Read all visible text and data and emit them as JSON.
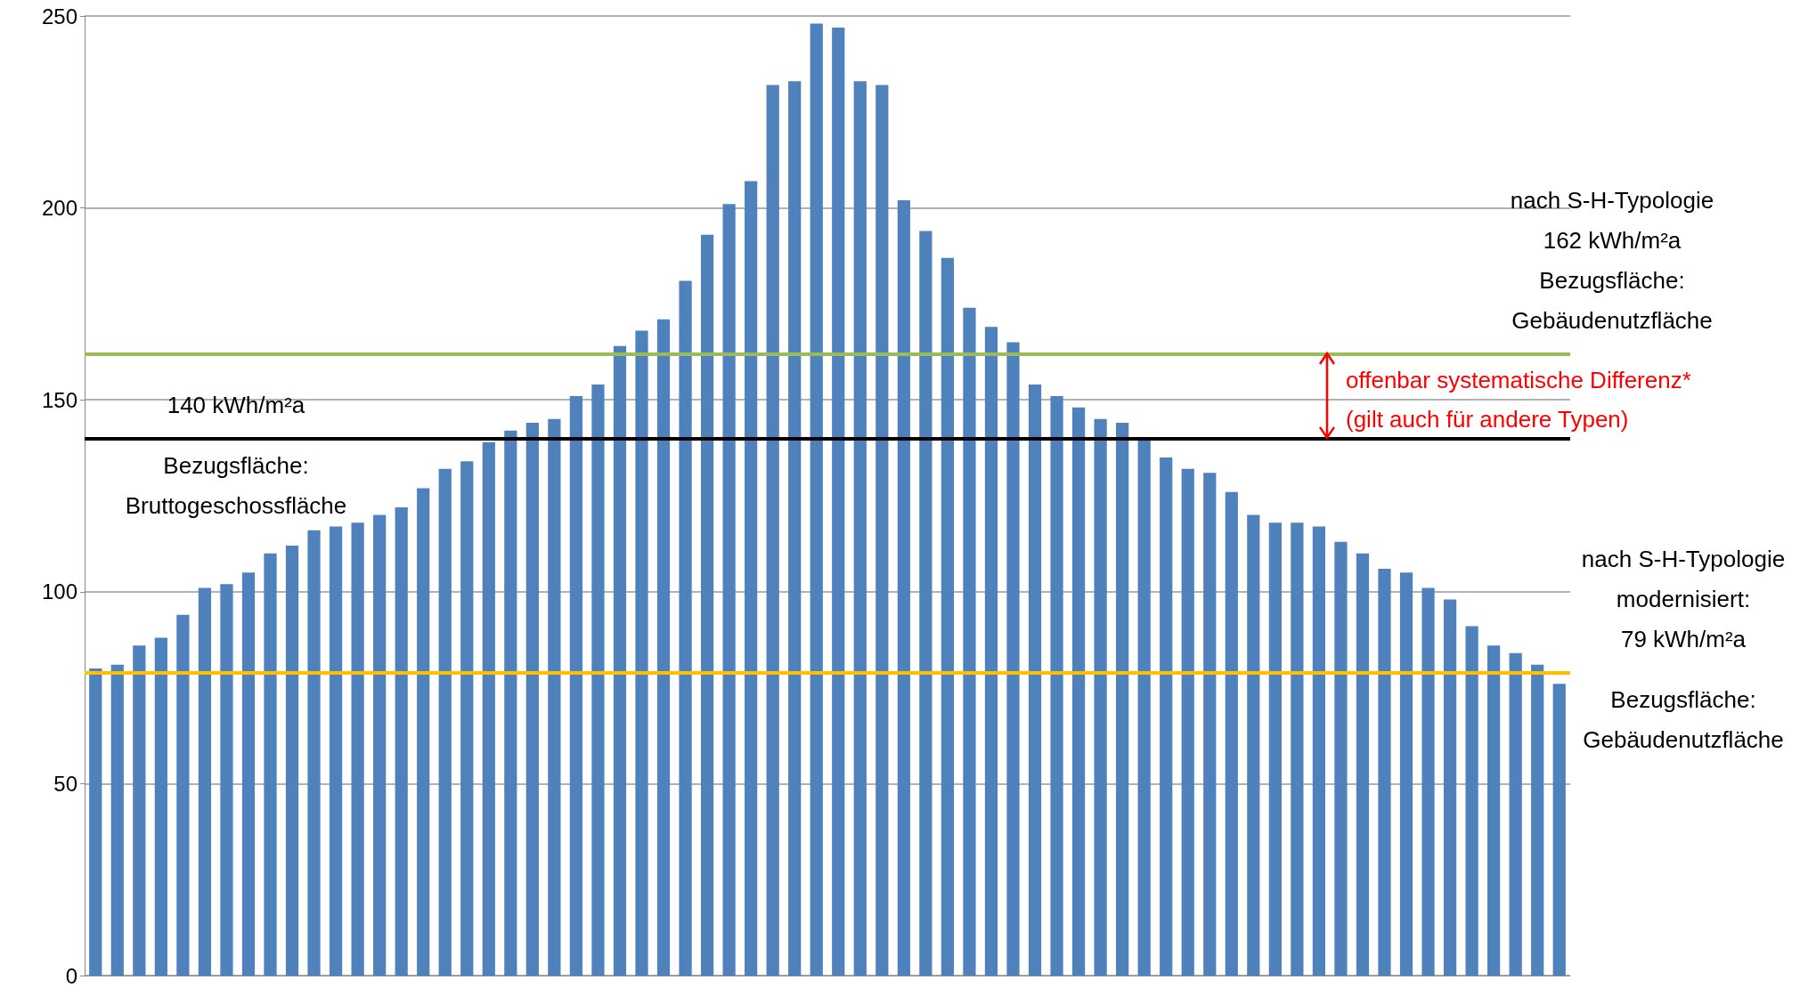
{
  "chart_data": {
    "type": "bar",
    "categories": [
      null,
      null,
      null,
      null,
      null,
      null,
      null,
      null,
      null,
      null,
      null,
      null,
      null,
      null,
      null,
      null,
      null,
      null,
      null,
      null,
      null,
      null,
      null,
      null,
      null,
      null,
      null,
      null,
      null,
      null,
      null,
      null,
      null,
      null,
      null,
      null,
      null,
      null,
      null,
      null,
      null,
      null,
      null,
      null,
      null,
      null,
      null,
      null,
      null,
      null,
      null,
      null,
      null,
      null,
      null,
      null,
      null,
      null,
      null,
      null,
      null,
      null,
      null,
      null,
      null,
      null,
      null,
      null
    ],
    "values": [
      80,
      81,
      86,
      88,
      94,
      101,
      102,
      105,
      110,
      112,
      116,
      117,
      118,
      120,
      122,
      127,
      132,
      134,
      139,
      142,
      144,
      145,
      151,
      154,
      164,
      168,
      171,
      181,
      193,
      201,
      207,
      232,
      233,
      248,
      247,
      233,
      232,
      202,
      194,
      187,
      174,
      169,
      165,
      154,
      151,
      148,
      145,
      144,
      140,
      135,
      132,
      131,
      126,
      120,
      118,
      118,
      117,
      113,
      110,
      106,
      105,
      101,
      98,
      91,
      86,
      84,
      81,
      76
    ],
    "color": "#4f81bd",
    "ylim": [
      0,
      250
    ],
    "yticks": [
      0,
      50,
      100,
      150,
      200,
      250
    ],
    "grid": "y",
    "ref_lines": [
      {
        "axis": "y",
        "value": 140,
        "label": "140 kWh/m²a\nBezugsfläche:\nBruttogeschossfläche",
        "color": "#000000"
      },
      {
        "axis": "y",
        "value": 162,
        "label": "nach S-H-Typologie\n162 kWh/m²a\nBezugsfläche:\nGebäudenutzfläche",
        "color": "#9bbb59"
      },
      {
        "axis": "y",
        "value": 79,
        "label": "nach S-H-Typologie\nmodernisiert:\n79 kWh/m²a\nBezugsfläche:\nGebäudenutzfläche",
        "color": "#ffc000"
      }
    ],
    "annotations": [
      "offenbar systematische Differenz*\n(gilt auch für andere Typen)"
    ]
  }
}
